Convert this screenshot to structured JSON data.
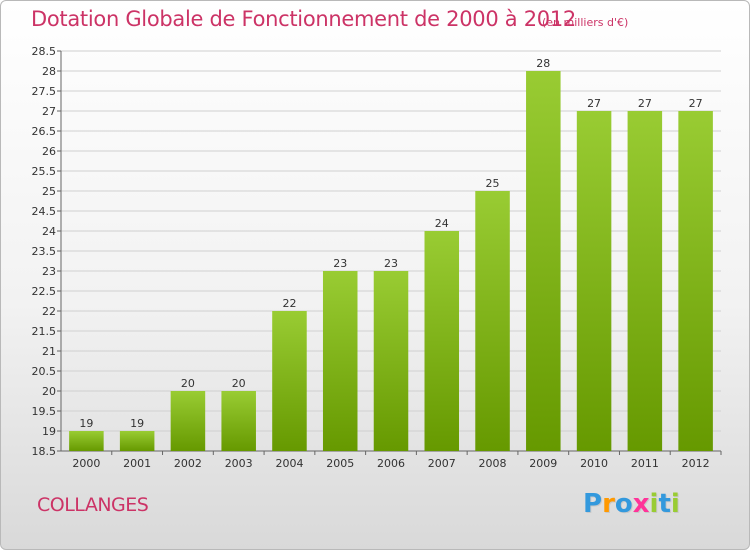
{
  "chart_data": {
    "type": "bar",
    "title": "Dotation Globale de Fonctionnement de 2000 à 2012",
    "unit_note": "(en milliers d'€)",
    "categories": [
      "2000",
      "2001",
      "2002",
      "2003",
      "2004",
      "2005",
      "2006",
      "2007",
      "2008",
      "2009",
      "2010",
      "2011",
      "2012"
    ],
    "values": [
      19,
      19,
      20,
      20,
      22,
      23,
      23,
      24,
      25,
      28,
      27,
      27,
      27
    ],
    "value_labels": [
      "19",
      "19",
      "20",
      "20",
      "22",
      "23",
      "23",
      "24",
      "25",
      "28",
      "27",
      "27",
      "27"
    ],
    "ylim": [
      18.5,
      28.5
    ],
    "yticks": [
      18.5,
      19,
      19.5,
      20,
      20.5,
      21,
      21.5,
      22,
      22.5,
      23,
      23.5,
      24,
      24.5,
      25,
      25.5,
      26,
      26.5,
      27,
      27.5,
      28,
      28.5
    ],
    "ytick_labels": [
      "18.5",
      "19",
      "19.5",
      "20",
      "20.5",
      "21",
      "21.5",
      "22",
      "22.5",
      "23",
      "23.5",
      "24",
      "24.5",
      "25",
      "25.5",
      "26",
      "26.5",
      "27",
      "27.5",
      "28",
      "28.5"
    ],
    "xlabel": "",
    "ylabel": "",
    "grid": true,
    "bar_color_top": "#99cc33",
    "bar_color_bottom": "#669900"
  },
  "commune_name": "COLLANGES",
  "brand": {
    "letters": [
      "P",
      "r",
      "o",
      "x",
      "i",
      "t",
      "i"
    ],
    "colors": [
      "#3399dd",
      "#ff9900",
      "#3399dd",
      "#ff3399",
      "#99cc33",
      "#3399dd",
      "#99cc33"
    ]
  },
  "colors": {
    "accent": "#cc3366",
    "grid": "#d0d0d0"
  }
}
